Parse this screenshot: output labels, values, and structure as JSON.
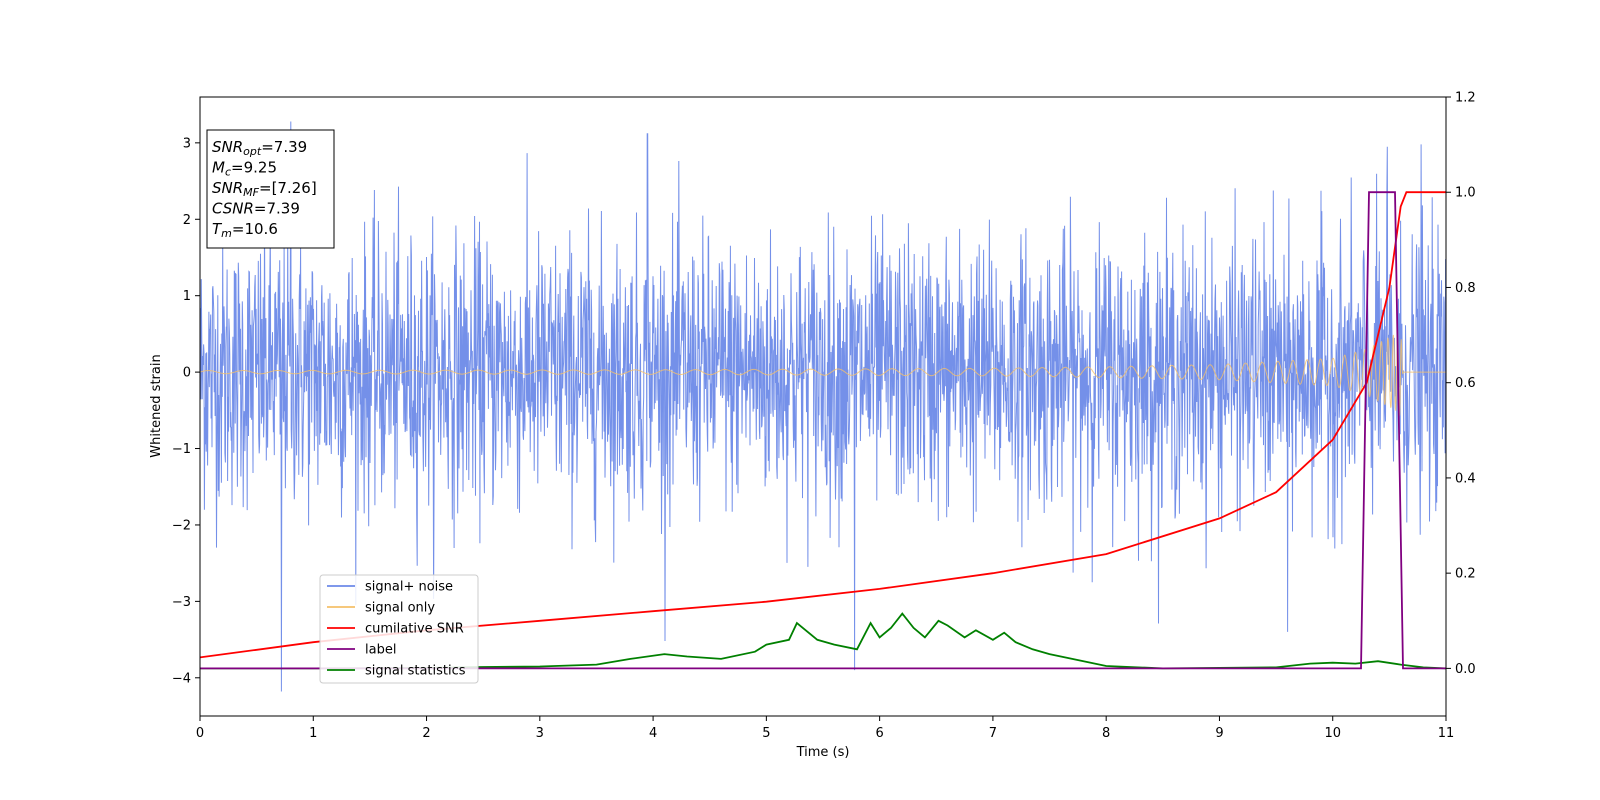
{
  "chart_data": {
    "type": "line",
    "xlabel": "Time (s)",
    "ylabel": "Whitened strain",
    "xlim": [
      0,
      11
    ],
    "ylim": [
      -4.5,
      3.6
    ],
    "y2lim": [
      -0.1,
      1.2
    ],
    "x_ticks": [
      "0",
      "1",
      "2",
      "3",
      "4",
      "5",
      "6",
      "7",
      "8",
      "9",
      "10",
      "11"
    ],
    "y_ticks": [
      "−4",
      "−3",
      "−2",
      "−1",
      "0",
      "1",
      "2",
      "3"
    ],
    "y2_ticks": [
      "0.0",
      "0.2",
      "0.4",
      "0.6",
      "0.8",
      "1.0",
      "1.2"
    ],
    "grid": false,
    "legend_position": "lower-left",
    "info_box": [
      {
        "base": "SNR",
        "sub": "opt",
        "value": "=7.39"
      },
      {
        "base": "M",
        "sub": "c",
        "value": "=9.25"
      },
      {
        "base": "SNR",
        "sub": "MF",
        "value": "=[7.26]"
      },
      {
        "base": "CSNR",
        "sub": "",
        "value": "=7.39"
      },
      {
        "base": "T",
        "sub": "m",
        "value": "=10.6"
      }
    ],
    "series": [
      {
        "name": "signal+ noise",
        "axis": "left",
        "color": "#6d8ae8",
        "kind": "noise",
        "envelope_p95": 1.75,
        "peak_points": [
          [
            0.8,
            3.28
          ],
          [
            0.72,
            -4.18
          ],
          [
            3.95,
            3.12
          ],
          [
            5.78,
            -3.9
          ],
          [
            9.6,
            -3.4
          ],
          [
            10.48,
            2.95
          ],
          [
            10.78,
            2.98
          ]
        ]
      },
      {
        "name": "signal only",
        "axis": "left",
        "color": "#f5c06a",
        "kind": "chirp",
        "amplitude_points": [
          [
            0,
            0.02
          ],
          [
            4,
            0.03
          ],
          [
            7,
            0.05
          ],
          [
            8,
            0.07
          ],
          [
            9,
            0.1
          ],
          [
            10,
            0.18
          ],
          [
            10.3,
            0.3
          ],
          [
            10.55,
            0.5
          ],
          [
            10.6,
            0.6
          ],
          [
            10.62,
            0.0
          ],
          [
            11,
            0.0
          ]
        ]
      },
      {
        "name": "cumilative SNR",
        "axis": "right",
        "color": "#ff0000",
        "points": [
          [
            0,
            0.023
          ],
          [
            1,
            0.055
          ],
          [
            2,
            0.08
          ],
          [
            3,
            0.1
          ],
          [
            4,
            0.12
          ],
          [
            5,
            0.14
          ],
          [
            6,
            0.167
          ],
          [
            7,
            0.2
          ],
          [
            8,
            0.24
          ],
          [
            9,
            0.315
          ],
          [
            9.5,
            0.37
          ],
          [
            10,
            0.48
          ],
          [
            10.3,
            0.6
          ],
          [
            10.5,
            0.8
          ],
          [
            10.6,
            0.97
          ],
          [
            10.65,
            1.0
          ],
          [
            11,
            1.0
          ]
        ]
      },
      {
        "name": "label",
        "axis": "right",
        "color": "#800080",
        "points": [
          [
            0,
            0.0
          ],
          [
            10.25,
            0.0
          ],
          [
            10.32,
            1.0
          ],
          [
            10.55,
            1.0
          ],
          [
            10.62,
            0.0
          ],
          [
            11,
            0.0
          ]
        ]
      },
      {
        "name": "signal statistics",
        "axis": "right",
        "color": "#008000",
        "points": [
          [
            0,
            0.0
          ],
          [
            1,
            0.0
          ],
          [
            2,
            0.001
          ],
          [
            2.5,
            0.003
          ],
          [
            3,
            0.004
          ],
          [
            3.5,
            0.008
          ],
          [
            3.8,
            0.02
          ],
          [
            4.1,
            0.03
          ],
          [
            4.3,
            0.025
          ],
          [
            4.6,
            0.02
          ],
          [
            4.9,
            0.035
          ],
          [
            5.0,
            0.05
          ],
          [
            5.2,
            0.06
          ],
          [
            5.27,
            0.095
          ],
          [
            5.45,
            0.06
          ],
          [
            5.6,
            0.05
          ],
          [
            5.8,
            0.04
          ],
          [
            5.92,
            0.095
          ],
          [
            6.0,
            0.065
          ],
          [
            6.1,
            0.085
          ],
          [
            6.2,
            0.115
          ],
          [
            6.3,
            0.085
          ],
          [
            6.4,
            0.065
          ],
          [
            6.52,
            0.1
          ],
          [
            6.6,
            0.09
          ],
          [
            6.75,
            0.065
          ],
          [
            6.85,
            0.08
          ],
          [
            7.0,
            0.06
          ],
          [
            7.1,
            0.075
          ],
          [
            7.2,
            0.055
          ],
          [
            7.35,
            0.04
          ],
          [
            7.5,
            0.03
          ],
          [
            7.7,
            0.02
          ],
          [
            8.0,
            0.005
          ],
          [
            8.5,
            0.0
          ],
          [
            9.0,
            0.001
          ],
          [
            9.5,
            0.002
          ],
          [
            9.8,
            0.01
          ],
          [
            10.0,
            0.012
          ],
          [
            10.2,
            0.01
          ],
          [
            10.4,
            0.015
          ],
          [
            10.6,
            0.008
          ],
          [
            10.8,
            0.002
          ],
          [
            11,
            0.0
          ]
        ]
      }
    ]
  }
}
